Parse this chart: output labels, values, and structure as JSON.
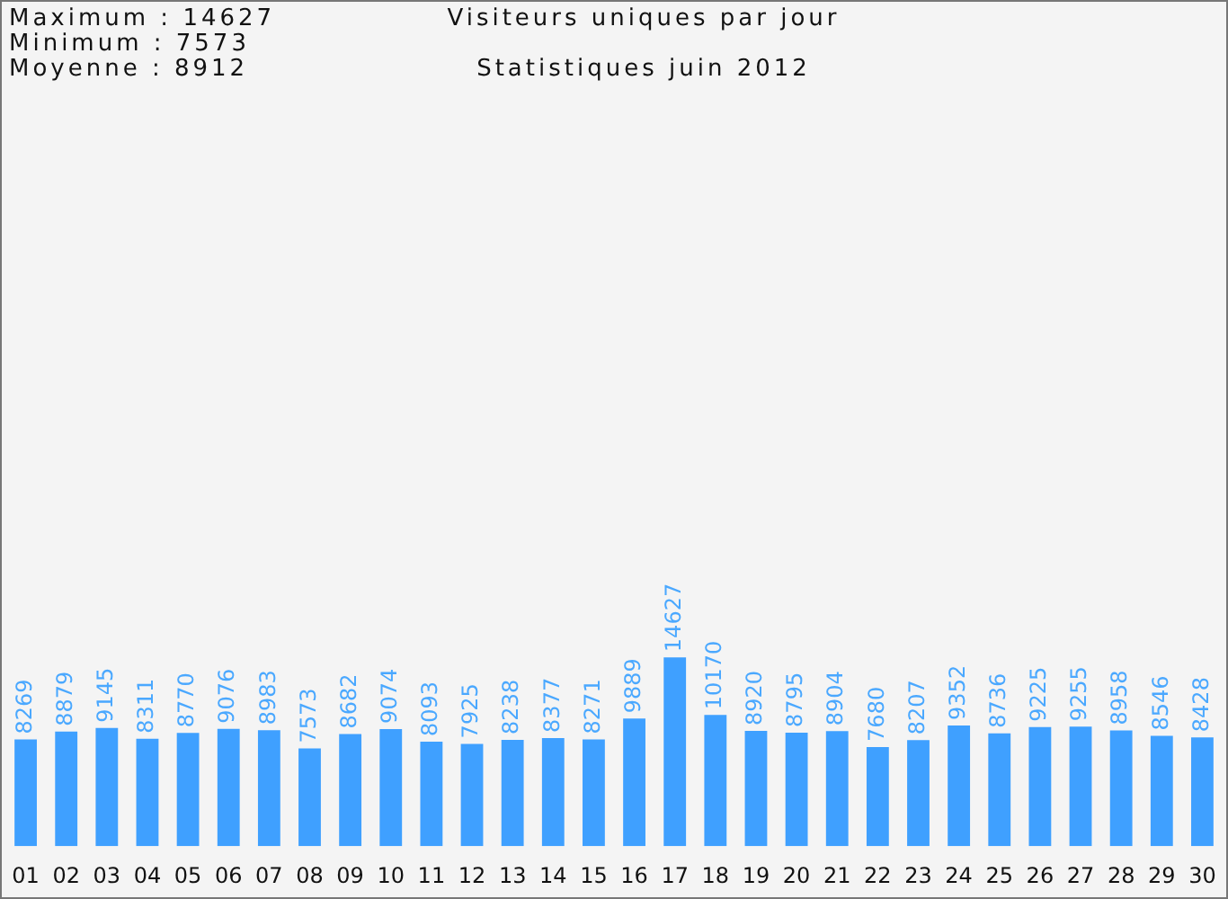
{
  "chart_data": {
    "type": "bar",
    "title": "Visiteurs uniques par jour",
    "subtitle": "Statistiques juin 2012",
    "annotations": [
      "Maximum : 14627",
      "Minimum : 7573",
      "Moyenne : 8912"
    ],
    "categories": [
      "01",
      "02",
      "03",
      "04",
      "05",
      "06",
      "07",
      "08",
      "09",
      "10",
      "11",
      "12",
      "13",
      "14",
      "15",
      "16",
      "17",
      "18",
      "19",
      "20",
      "21",
      "22",
      "23",
      "24",
      "25",
      "26",
      "27",
      "28",
      "29",
      "30"
    ],
    "values": [
      8269,
      8879,
      9145,
      8311,
      8770,
      9076,
      8983,
      7573,
      8682,
      9074,
      8093,
      7925,
      8238,
      8377,
      8271,
      9889,
      14627,
      10170,
      8920,
      8795,
      8904,
      7680,
      8207,
      9352,
      8736,
      9225,
      9255,
      8958,
      8546,
      8428
    ],
    "color": "#3fa0ff",
    "data_labels": true
  }
}
